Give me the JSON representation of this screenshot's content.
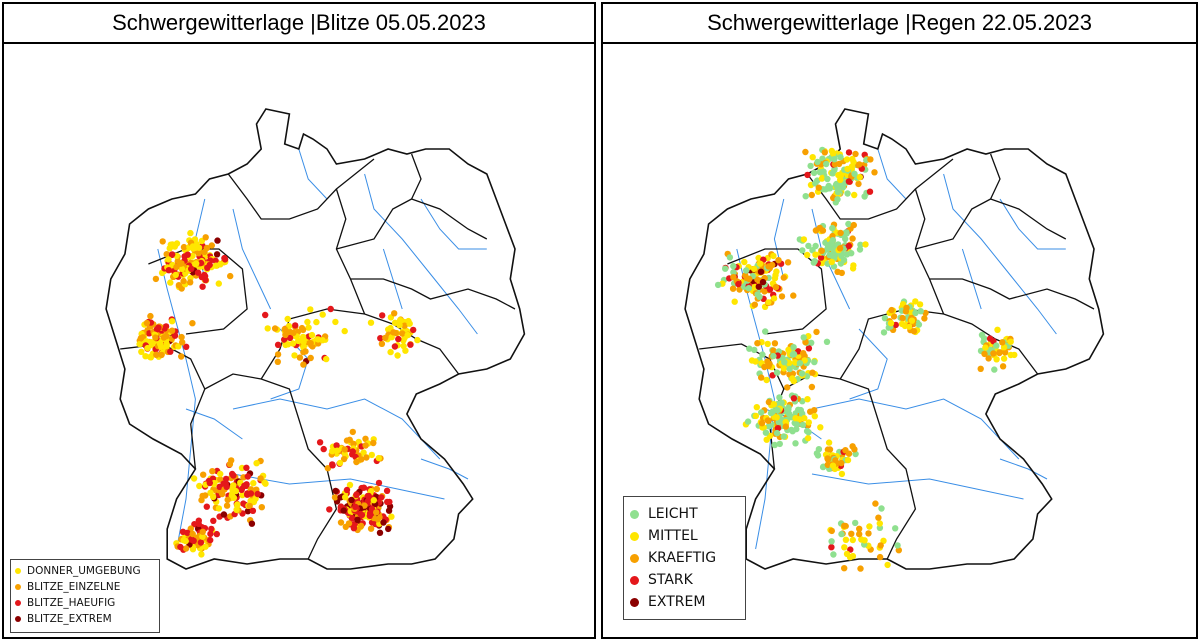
{
  "panels": [
    {
      "title": "Schwergewitterlage |Blitze 05.05.2023",
      "legend": [
        {
          "label": "DONNER_UMGEBUNG",
          "color": "#ffe600"
        },
        {
          "label": "BLITZE_EINZELNE",
          "color": "#f7a000"
        },
        {
          "label": "BLITZE_HAEUFIG",
          "color": "#e4171b"
        },
        {
          "label": "BLITZE_EXTREM",
          "color": "#8b0000"
        }
      ]
    },
    {
      "title": "Schwergewitterlage |Regen 22.05.2023",
      "legend": [
        {
          "label": "LEICHT",
          "color": "#8fe08f"
        },
        {
          "label": "MITTEL",
          "color": "#ffe600"
        },
        {
          "label": "KRAEFTIG",
          "color": "#f7a000"
        },
        {
          "label": "STARK",
          "color": "#e4171b"
        },
        {
          "label": "EXTREM",
          "color": "#8b0000"
        }
      ]
    }
  ],
  "colors": {
    "border": "#111111",
    "river": "#3a8ee6",
    "land": "#ffffff"
  }
}
